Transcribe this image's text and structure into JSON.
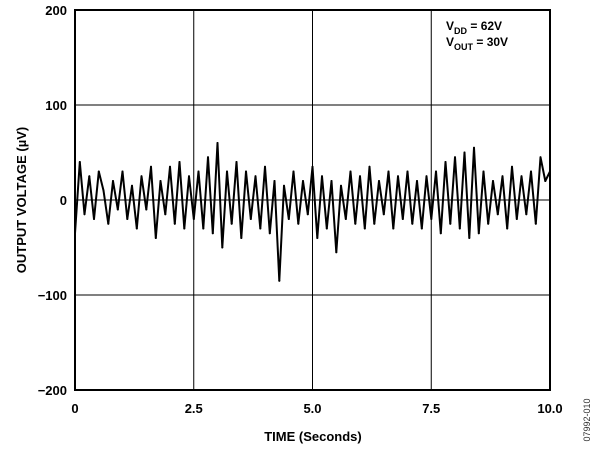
{
  "chart_data": {
    "type": "line",
    "xlabel": "TIME (Seconds)",
    "ylabel": "OUTPUT VOLTAGE (µV)",
    "xlim": [
      0,
      10
    ],
    "ylim": [
      -200,
      200
    ],
    "x_ticks": [
      0,
      2.5,
      5,
      7.5,
      10
    ],
    "x_tick_labels": [
      "0",
      "2.5",
      "5.0",
      "7.5",
      "10.0"
    ],
    "y_ticks": [
      200,
      100,
      0,
      -100,
      -200
    ],
    "y_tick_labels": [
      "200",
      "100",
      "0",
      "−100",
      "−200"
    ],
    "grid": true,
    "legend": "none",
    "series_color": "#000000",
    "annotation": {
      "line1_main": "V",
      "line1_sub": "DD",
      "line1_rest": " = 62V",
      "line2_main": "V",
      "line2_sub": "OUT",
      "line2_rest": " = 30V"
    },
    "figure_id": "07992-010",
    "x": [
      0.0,
      0.1,
      0.2,
      0.3,
      0.4,
      0.5,
      0.6,
      0.7,
      0.8,
      0.9,
      1.0,
      1.1,
      1.2,
      1.3,
      1.4,
      1.5,
      1.6,
      1.7,
      1.8,
      1.9,
      2.0,
      2.1,
      2.2,
      2.3,
      2.4,
      2.5,
      2.6,
      2.7,
      2.8,
      2.9,
      3.0,
      3.1,
      3.2,
      3.3,
      3.4,
      3.5,
      3.6,
      3.7,
      3.8,
      3.9,
      4.0,
      4.1,
      4.2,
      4.3,
      4.4,
      4.5,
      4.6,
      4.7,
      4.8,
      4.9,
      5.0,
      5.1,
      5.2,
      5.3,
      5.4,
      5.5,
      5.6,
      5.7,
      5.8,
      5.9,
      6.0,
      6.1,
      6.2,
      6.3,
      6.4,
      6.5,
      6.6,
      6.7,
      6.8,
      6.9,
      7.0,
      7.1,
      7.2,
      7.3,
      7.4,
      7.5,
      7.6,
      7.7,
      7.8,
      7.9,
      8.0,
      8.1,
      8.2,
      8.3,
      8.4,
      8.5,
      8.6,
      8.7,
      8.8,
      8.9,
      9.0,
      9.1,
      9.2,
      9.3,
      9.4,
      9.5,
      9.6,
      9.7,
      9.8,
      9.9,
      10.0
    ],
    "y": [
      -35,
      40,
      -15,
      25,
      -20,
      30,
      10,
      -25,
      20,
      -10,
      30,
      -20,
      15,
      -30,
      25,
      -10,
      35,
      -40,
      20,
      -15,
      35,
      -25,
      40,
      -30,
      25,
      -20,
      30,
      -30,
      45,
      -35,
      60,
      -50,
      30,
      -25,
      40,
      -40,
      30,
      -20,
      25,
      -30,
      35,
      -35,
      20,
      -85,
      15,
      -20,
      30,
      -25,
      20,
      -15,
      35,
      -40,
      25,
      -30,
      20,
      -55,
      15,
      -20,
      30,
      -25,
      25,
      -30,
      35,
      -25,
      20,
      -15,
      30,
      -30,
      25,
      -20,
      30,
      -25,
      20,
      -30,
      25,
      -20,
      30,
      -35,
      40,
      -25,
      45,
      -30,
      50,
      -40,
      55,
      -35,
      30,
      -25,
      20,
      -15,
      25,
      -30,
      35,
      -20,
      25,
      -15,
      30,
      -25,
      45,
      20,
      30
    ]
  }
}
